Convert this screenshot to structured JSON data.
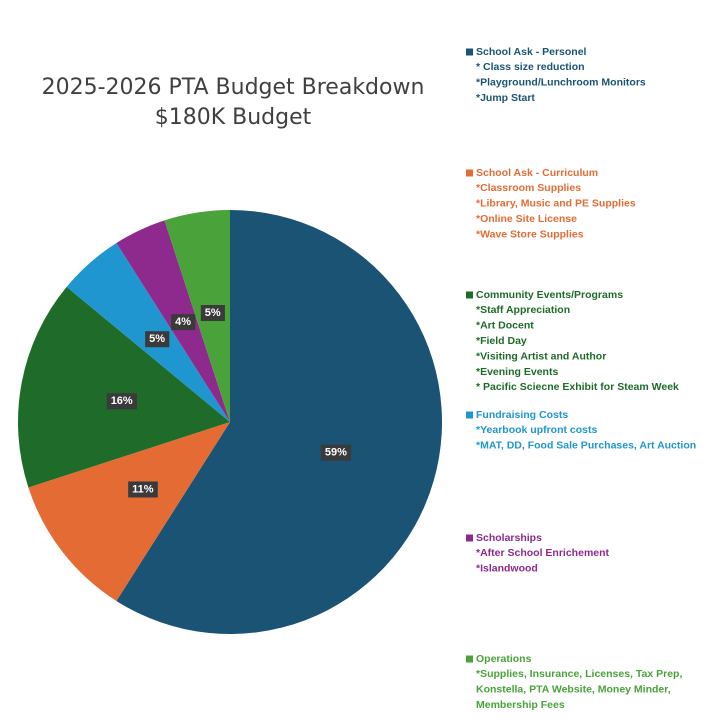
{
  "chart_data": {
    "type": "pie",
    "title": "2025-2026 PTA Budget Breakdown",
    "subtitle": "$180K Budget",
    "categories": [
      "School Ask  - Personel",
      "School Ask - Curriculum",
      "Community Events/Programs",
      "Fundraising Costs",
      "Scholarships",
      "Operations"
    ],
    "values": [
      59,
      11,
      16,
      5,
      4,
      5
    ],
    "value_labels": [
      "59%",
      "11%",
      "16%",
      "5%",
      "4%",
      "5%"
    ],
    "colors": [
      "#1b5374",
      "#e46c34",
      "#1e6b2a",
      "#1f96cf",
      "#8e2a8e",
      "#4aa23a"
    ],
    "legend": "right",
    "legend_details": [
      [
        "* Class size reduction",
        "*Playground/Lunchroom Monitors",
        "*Jump Start"
      ],
      [
        "*Classroom Supplies",
        "*Library, Music and PE Supplies",
        "*Online Site License",
        "*Wave Store Supplies"
      ],
      [
        "*Staff Appreciation",
        "*Art Docent",
        "*Field Day",
        "*Visiting Artist and Author",
        "*Evening Events",
        "* Pacific Sciecne Exhibit for Steam Week"
      ],
      [
        "*Yearbook upfront costs",
        "*MAT, DD, Food Sale Purchases, Art Auction"
      ],
      [
        "*After School Enrichement",
        "*Islandwood"
      ],
      [
        "*Supplies, Insurance, Licenses, Tax Prep,",
        "Konstella, PTA Website, Money Minder,",
        "Membership Fees"
      ]
    ]
  }
}
